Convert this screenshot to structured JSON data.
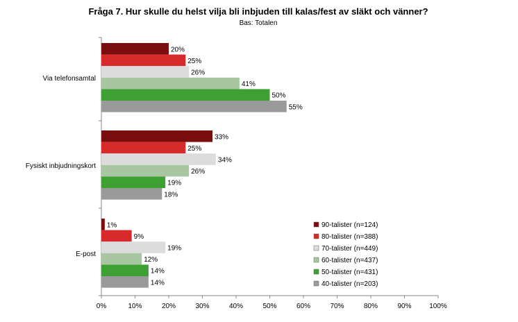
{
  "chart_data": {
    "type": "bar",
    "orientation": "horizontal",
    "title": "Fråga 7. Hur skulle du helst vilja bli inbjuden till kalas/fest av släkt och vänner?",
    "subtitle": "Bas: Totalen",
    "categories": [
      "Via telefonsamtal",
      "Fysiskt inbjudningskort",
      "E-post"
    ],
    "xlim": [
      0,
      100
    ],
    "x_ticks": [
      "0%",
      "10%",
      "20%",
      "30%",
      "40%",
      "50%",
      "60%",
      "70%",
      "80%",
      "90%",
      "100%"
    ],
    "value_suffix": "%",
    "grid": false,
    "legend_position": "right",
    "series": [
      {
        "name": "90-talister (n=124)",
        "color": "#7a0e0e",
        "values": [
          20,
          33,
          1
        ]
      },
      {
        "name": "80-talister (n=388)",
        "color": "#d72a2a",
        "values": [
          25,
          25,
          9
        ]
      },
      {
        "name": "70-talister (n=449)",
        "color": "#dcdcdc",
        "values": [
          26,
          34,
          19
        ]
      },
      {
        "name": "60-talister (n=437)",
        "color": "#a9c6a2",
        "values": [
          41,
          26,
          12
        ]
      },
      {
        "name": "50-talister (n=431)",
        "color": "#3ea033",
        "values": [
          50,
          19,
          14
        ]
      },
      {
        "name": "40-talister (n=203)",
        "color": "#9a9a9a",
        "values": [
          55,
          18,
          14
        ]
      }
    ]
  }
}
